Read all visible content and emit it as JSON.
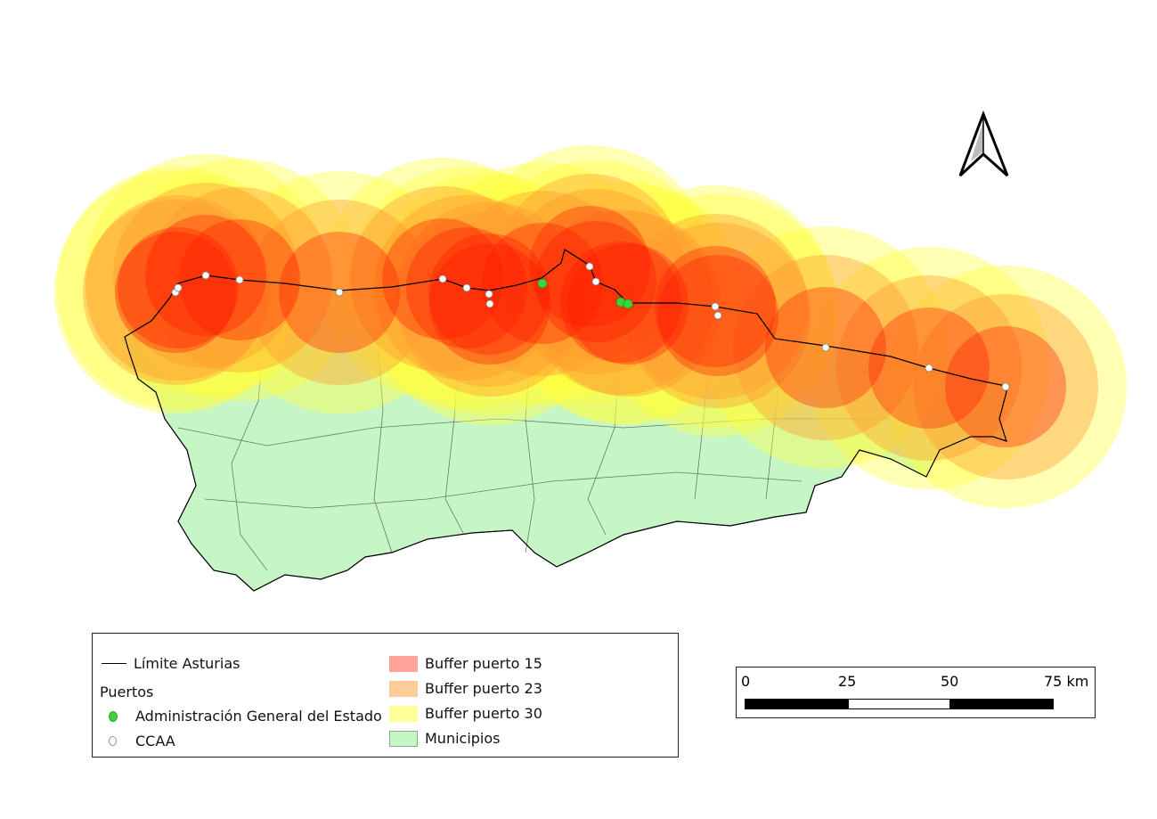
{
  "legend": {
    "limit_label": "Límite Asturias",
    "ports_group_label": "Puertos",
    "port_state_label": "Administración General del Estado",
    "port_ccaa_label": "CCAA",
    "buffer15_label": "Buffer puerto 15",
    "buffer23_label": "Buffer puerto 23",
    "buffer30_label": "Buffer puerto 30",
    "municipios_label": "Municipios"
  },
  "scale_bar": {
    "ticks": [
      "0",
      "25",
      "50",
      "75 km"
    ]
  },
  "colors": {
    "buffer15": "#ff1a00",
    "buffer23": "#ff9a30",
    "buffer30": "#ffff40",
    "municipios": "#c6f5c6",
    "port_state": "#3fd13f",
    "port_ccaa": "#ffffff"
  }
}
